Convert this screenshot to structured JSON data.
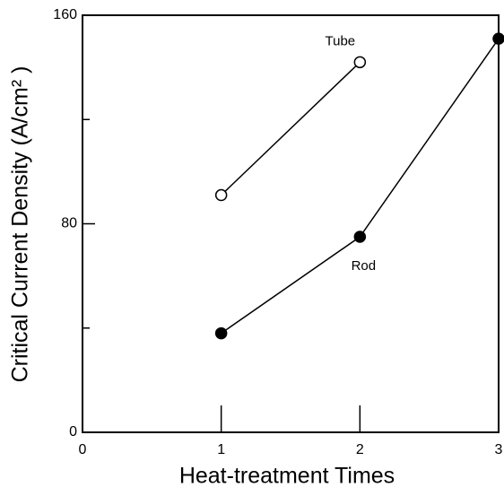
{
  "chart_data": {
    "type": "line",
    "xlabel": "Heat-treatment Times",
    "ylabel": "Critical Current Density (A/cm² )",
    "xlim": [
      0,
      3
    ],
    "xticks": [
      0,
      1,
      2,
      3
    ],
    "ylim": [
      0,
      160
    ],
    "yticks": [
      0,
      80,
      160
    ],
    "yminor": [
      40,
      120
    ],
    "series": [
      {
        "name": "Tube",
        "color": "#000000",
        "marker": "open",
        "x": [
          1,
          2
        ],
        "values": [
          91,
          142
        ]
      },
      {
        "name": "Rod",
        "color": "#000000",
        "marker": "filled",
        "x": [
          1,
          2,
          3
        ],
        "values": [
          38,
          75,
          151
        ]
      }
    ]
  }
}
